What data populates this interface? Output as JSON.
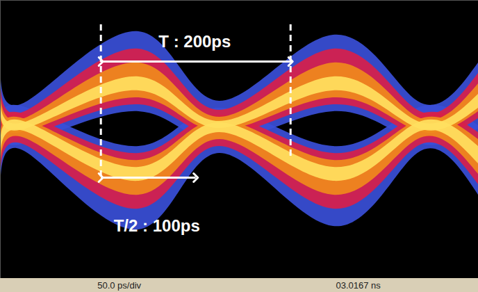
{
  "chart_data": {
    "type": "eye_diagram",
    "xlim": [
      -106,
      398
    ],
    "ylim": [
      -2.2,
      1.8
    ],
    "tick_labels": false,
    "grid": false,
    "x": [
      -106,
      -77,
      40,
      125,
      245,
      334,
      398
    ],
    "bands": [
      {
        "color": "#3a4fd8",
        "low": [
          -0.05,
          -0.25,
          0.2,
          -0.25,
          0.2,
          -0.25,
          -0.05
        ],
        "high": [
          0.9,
          0.35,
          1.35,
          0.35,
          1.3,
          0.35,
          0.9
        ]
      },
      {
        "color": "#3a4fd8",
        "low": [
          -1.0,
          -0.4,
          -1.5,
          -0.4,
          -1.45,
          -0.4,
          -1.0
        ],
        "high": [
          0.0,
          0.25,
          -0.3,
          0.25,
          -0.3,
          0.25,
          0.0
        ]
      },
      {
        "color": "#d8204a",
        "low": [
          0.1,
          -0.15,
          0.3,
          -0.15,
          0.3,
          -0.15,
          0.1
        ],
        "high": [
          0.75,
          0.22,
          1.1,
          0.22,
          1.1,
          0.22,
          0.75
        ]
      },
      {
        "color": "#d8204a",
        "low": [
          -0.85,
          -0.3,
          -1.2,
          -0.3,
          -1.2,
          -0.3,
          -0.85
        ],
        "high": [
          -0.1,
          0.15,
          -0.4,
          0.15,
          -0.4,
          0.15,
          -0.1
        ]
      },
      {
        "color": "#f08a1c",
        "low": [
          0.2,
          -0.08,
          0.4,
          -0.08,
          0.4,
          -0.08,
          0.2
        ],
        "high": [
          0.6,
          0.12,
          0.9,
          0.12,
          0.9,
          0.12,
          0.6
        ]
      },
      {
        "color": "#f08a1c",
        "low": [
          -0.7,
          -0.2,
          -1.0,
          -0.2,
          -1.0,
          -0.2,
          -0.7
        ],
        "high": [
          -0.2,
          0.08,
          -0.5,
          0.08,
          -0.5,
          0.08,
          -0.2
        ]
      },
      {
        "color": "#ffe060",
        "low": [
          0.25,
          -0.04,
          0.5,
          -0.04,
          0.5,
          -0.04,
          0.25
        ],
        "high": [
          0.45,
          0.06,
          0.7,
          0.06,
          0.7,
          0.06,
          0.45
        ]
      },
      {
        "color": "#ffe060",
        "low": [
          -0.55,
          -0.1,
          -0.8,
          -0.1,
          -0.8,
          -0.1,
          -0.55
        ],
        "high": [
          -0.3,
          0.04,
          -0.6,
          0.04,
          -0.6,
          0.04,
          -0.3
        ]
      }
    ],
    "markers": [
      {
        "x": 0,
        "y1": 1.45,
        "y2": -0.75
      },
      {
        "x": 200,
        "y1": 1.45,
        "y2": -0.5
      }
    ],
    "annotations": [
      {
        "text": "T : 200ps",
        "x1": 0,
        "x2": 200,
        "y": 0.92,
        "label_x": 99,
        "label_y": 1.2
      },
      {
        "text": "T/2 : 100ps",
        "x1": 0,
        "x2": 100,
        "y": -0.75,
        "label_x": 59,
        "label_y": -1.45
      }
    ],
    "footer": [
      "50.0 ps/div",
      "03.0167 ns"
    ]
  }
}
